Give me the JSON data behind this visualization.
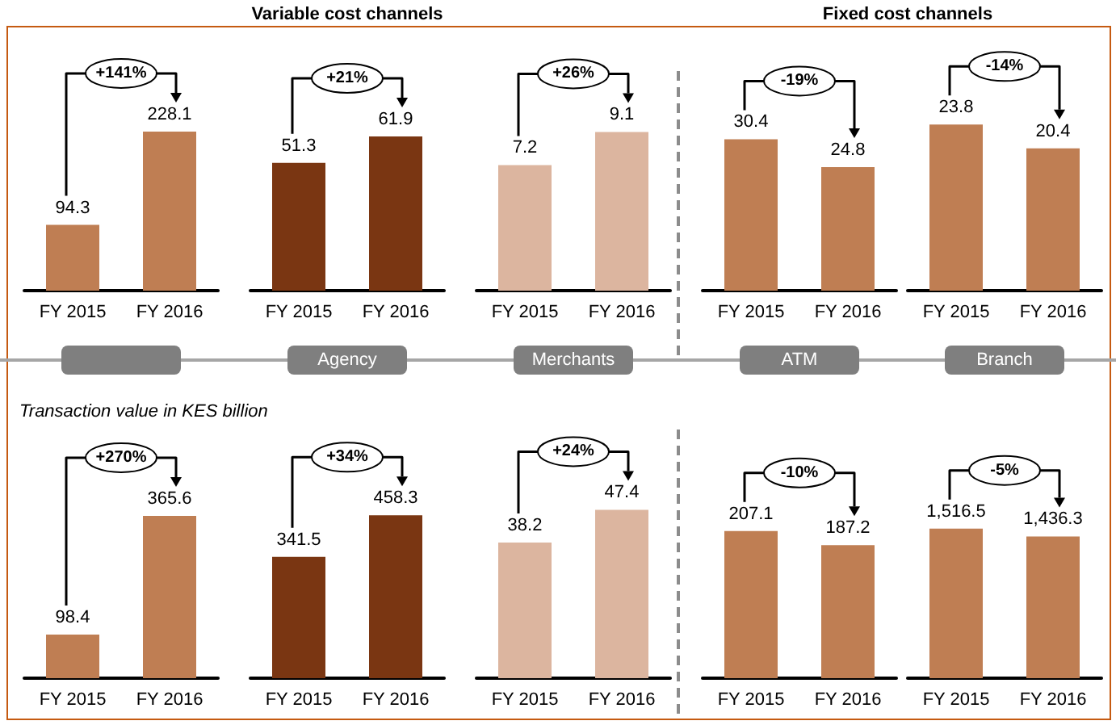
{
  "chart_data": [
    {
      "type": "bar",
      "categories": [
        "FY 2015",
        "FY 2016"
      ],
      "values": [
        94.3,
        228.1
      ],
      "colors": [
        "#bf7e53",
        "#bf7e53"
      ],
      "data_labels": true,
      "annotations": [
        "+141%"
      ]
    },
    {
      "type": "bar",
      "title": "Variable cost channels",
      "xlabel": "Agency",
      "categories": [
        "FY 2015",
        "FY 2016"
      ],
      "values": [
        51.3,
        61.9
      ],
      "colors": [
        "#7a3612",
        "#7a3612"
      ],
      "data_labels": true,
      "annotations": [
        "+21%"
      ]
    },
    {
      "type": "bar",
      "xlabel": "Merchants",
      "categories": [
        "FY 2015",
        "FY 2016"
      ],
      "values": [
        7.2,
        9.1
      ],
      "colors": [
        "#dcb59f",
        "#dcb59f"
      ],
      "data_labels": true,
      "annotations": [
        "+26%"
      ]
    },
    {
      "type": "bar",
      "title": "Fixed cost channels",
      "xlabel": "ATM",
      "categories": [
        "FY 2015",
        "FY 2016"
      ],
      "values": [
        30.4,
        24.8
      ],
      "colors": [
        "#bf7e53",
        "#bf7e53"
      ],
      "data_labels": true,
      "annotations": [
        "-19%"
      ]
    },
    {
      "type": "bar",
      "xlabel": "Branch",
      "categories": [
        "FY 2015",
        "FY 2016"
      ],
      "values": [
        23.8,
        20.4
      ],
      "colors": [
        "#bf7e53",
        "#bf7e53"
      ],
      "data_labels": true,
      "annotations": [
        "-14%"
      ]
    },
    {
      "type": "bar",
      "title": "Transaction value in KES billion",
      "categories": [
        "FY 2015",
        "FY 2016"
      ],
      "values": [
        98.4,
        365.6
      ],
      "colors": [
        "#bf7e53",
        "#bf7e53"
      ],
      "data_labels": true,
      "annotations": [
        "+270%"
      ]
    },
    {
      "type": "bar",
      "categories": [
        "FY 2015",
        "FY 2016"
      ],
      "values": [
        341.5,
        458.3
      ],
      "colors": [
        "#7a3612",
        "#7a3612"
      ],
      "data_labels": true,
      "annotations": [
        "+34%"
      ]
    },
    {
      "type": "bar",
      "categories": [
        "FY 2015",
        "FY 2016"
      ],
      "values": [
        38.2,
        47.4
      ],
      "colors": [
        "#dcb59f",
        "#dcb59f"
      ],
      "data_labels": true,
      "annotations": [
        "+24%"
      ]
    },
    {
      "type": "bar",
      "categories": [
        "FY 2015",
        "FY 2016"
      ],
      "values": [
        207.1,
        187.2
      ],
      "colors": [
        "#bf7e53",
        "#bf7e53"
      ],
      "data_labels": true,
      "annotations": [
        "-10%"
      ]
    },
    {
      "type": "bar",
      "categories": [
        "FY 2015",
        "FY 2016"
      ],
      "values": [
        1516.5,
        1436.3
      ],
      "colors": [
        "#bf7e53",
        "#bf7e53"
      ],
      "value_labels": [
        "1,516.5",
        "1,436.3"
      ],
      "annotations": [
        "-5%"
      ]
    }
  ]
}
